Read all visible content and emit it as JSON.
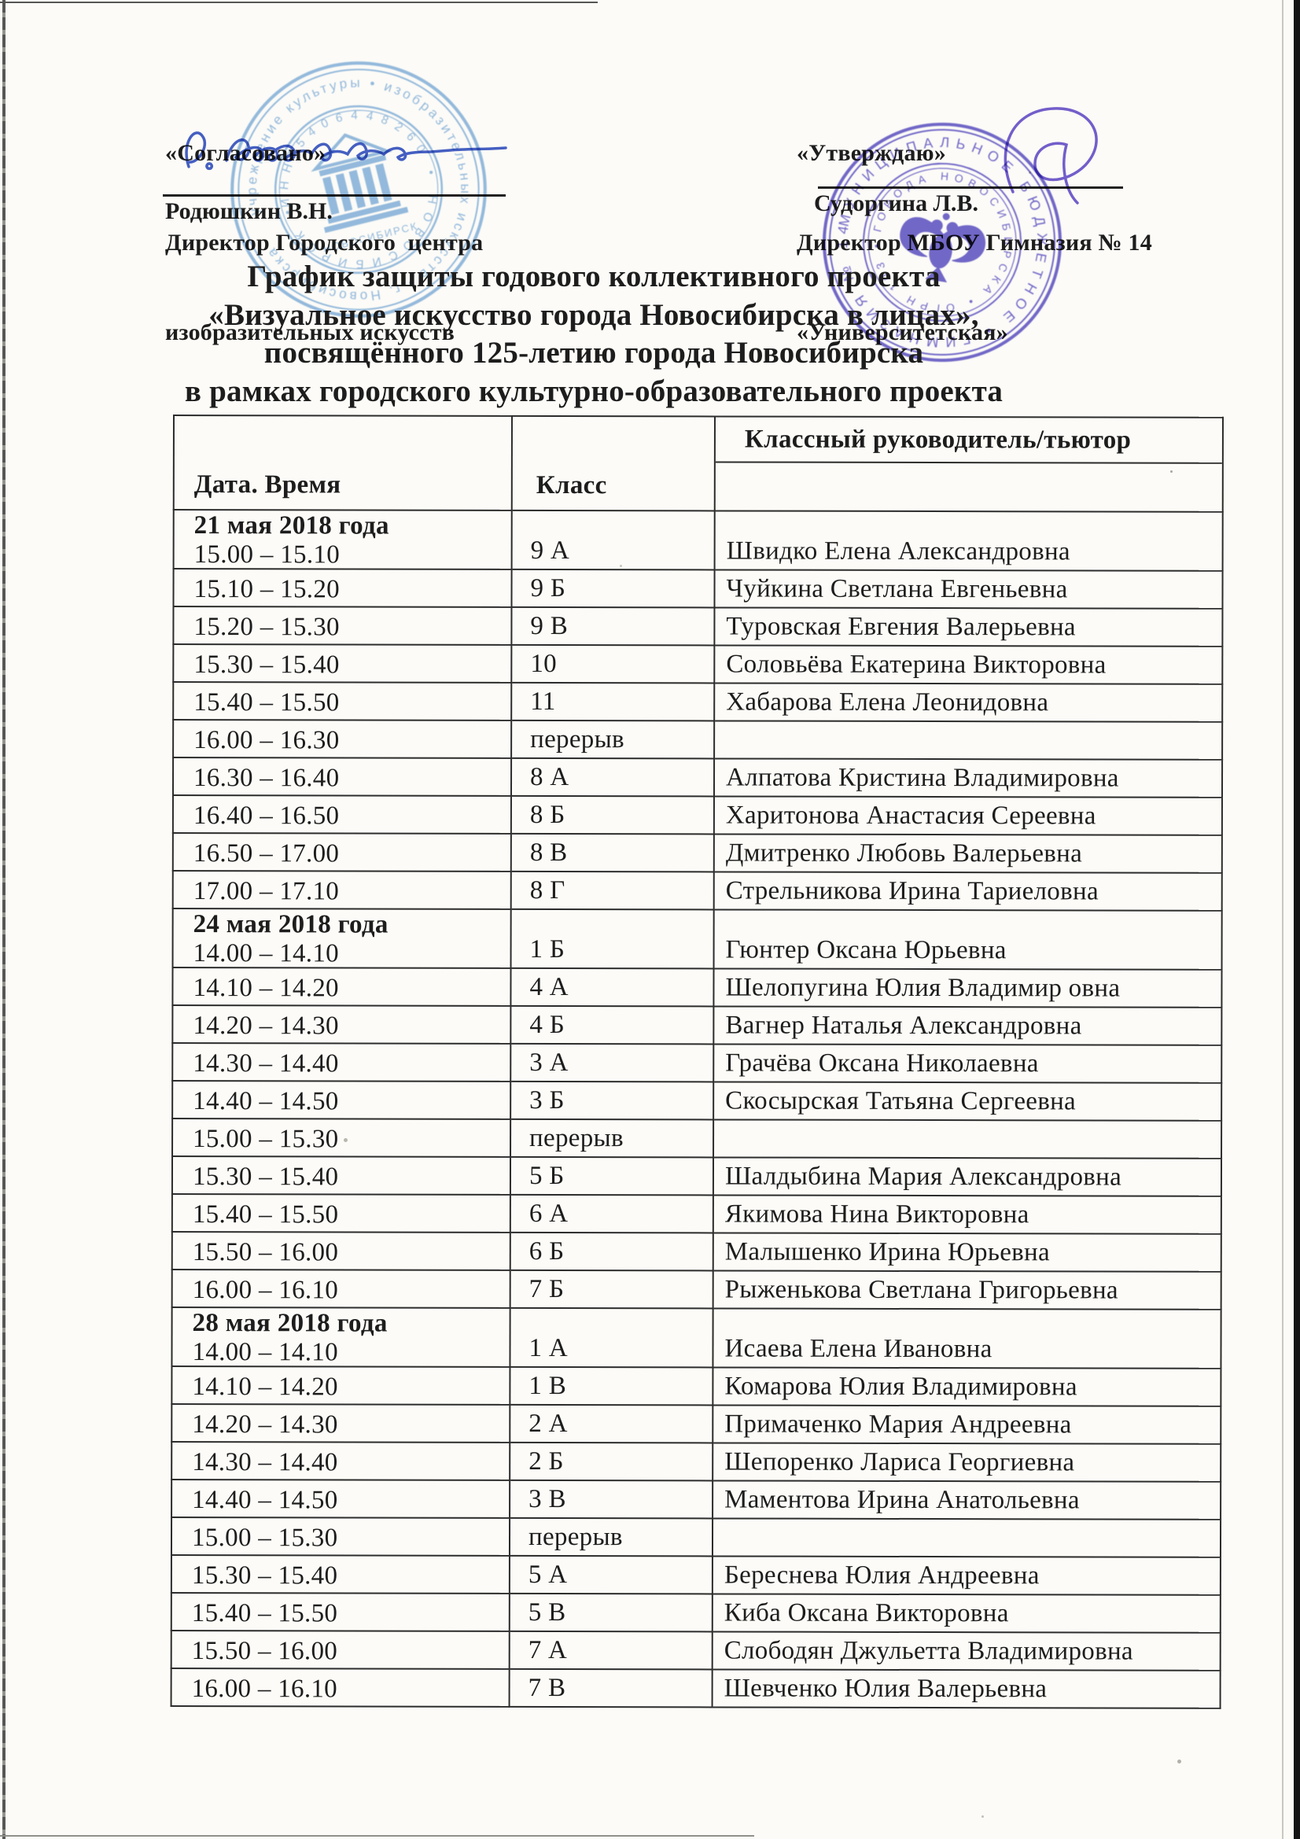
{
  "document": {
    "approval_left": {
      "status": "«Согласовано»",
      "role_line1": "Директор Городского  центра",
      "role_line2": "изобразительных искусств",
      "signatory": "Родюшкин В.Н."
    },
    "approval_right": {
      "status": "«Утверждаю»",
      "role_line1": "Директор МБОУ Гимназия № 14",
      "role_line2": "«Университетская»",
      "signatory": "Судоргина Л.В."
    },
    "title_lines": [
      "График защиты годового коллективного проекта",
      "«Визуальное искусство города Новосибирска в лицах»,",
      "посвящённого 125-летию города Новосибирска",
      "в рамках городского культурно-образовательного проекта"
    ],
    "stamps": {
      "left": {
        "color": "#4e8fd0",
        "ring1": "учреждение культуры • изобразительных искусств • г. Новосибирска",
        "ring2": "ИНН 5406448260 • НОВОСИБИРСК •",
        "center_label": "НОВОСИБИРСК"
      },
      "right": {
        "color": "#4a3ec0",
        "ring1": "МУНИЦИПАЛЬНОЕ БЮДЖЕТНОЕ • ГИМНАЗИЯ № 14 •",
        "ring2": "ГОРОДА НОВОСИБИРСКА • ОГРН 103 •"
      }
    }
  },
  "table": {
    "headers": [
      "Дата. Время",
      "Класс",
      "Классный руководитель/тьютор"
    ],
    "rows": [
      {
        "date": "21 мая 2018 года",
        "time": "15.00 – 15.10",
        "cls": "9 А",
        "teacher": "Швидко Елена Александровна"
      },
      {
        "time": "15.10 – 15.20",
        "cls": "9 Б",
        "teacher": "Чуйкина Светлана Евгеньевна"
      },
      {
        "time": "15.20 – 15.30",
        "cls": "9 В",
        "teacher": "Туровская Евгения Валерьевна"
      },
      {
        "time": "15.30 – 15.40",
        "cls": "10",
        "teacher": "Соловьёва Екатерина Викторовна"
      },
      {
        "time": "15.40 – 15.50",
        "cls": "11",
        "teacher": "Хабарова Елена Леонидовна"
      },
      {
        "time": "16.00 – 16.30",
        "cls": "перерыв",
        "teacher": ""
      },
      {
        "time": "16.30 – 16.40",
        "cls": "8 А",
        "teacher": "Алпатова Кристина Владимировна"
      },
      {
        "time": "16.40 – 16.50",
        "cls": "8 Б",
        "teacher": "Харитонова Анастасия Сереевна"
      },
      {
        "time": "16.50 – 17.00",
        "cls": "8 В",
        "teacher": "Дмитренко Любовь Валерьевна"
      },
      {
        "time": "17.00 – 17.10",
        "cls": "8 Г",
        "teacher": "Стрельникова Ирина Тариеловна"
      },
      {
        "date": "24 мая 2018 года",
        "time": "14.00 – 14.10",
        "cls": "1 Б",
        "teacher": "Гюнтер Оксана Юрьевна"
      },
      {
        "time": "14.10 – 14.20",
        "cls": "4 А",
        "teacher": "Шелопугина Юлия Владимир овна"
      },
      {
        "time": "14.20 – 14.30",
        "cls": "4 Б",
        "teacher": "Вагнер Наталья Александровна"
      },
      {
        "time": "14.30 – 14.40",
        "cls": "3 А",
        "teacher": "Грачёва Оксана Николаевна"
      },
      {
        "time": "14.40 – 14.50",
        "cls": "3 Б",
        "teacher": "Скосырская Татьяна Сергеевна"
      },
      {
        "time": "15.00 – 15.30",
        "cls": "перерыв",
        "teacher": ""
      },
      {
        "time": "15.30 – 15.40",
        "cls": "5 Б",
        "teacher": "Шалдыбина Мария Александровна"
      },
      {
        "time": "15.40 – 15.50",
        "cls": "6 А",
        "teacher": "Якимова Нина Викторовна"
      },
      {
        "time": "15.50 – 16.00",
        "cls": "6 Б",
        "teacher": "Малышенко Ирина Юрьевна"
      },
      {
        "time": "16.00 – 16.10",
        "cls": "7 Б",
        "teacher": "Рыженькова Светлана Григорьевна"
      },
      {
        "date": "28 мая 2018 года",
        "time": "14.00 – 14.10",
        "cls": "1 А",
        "teacher": "Исаева Елена Ивановна"
      },
      {
        "time": "14.10 – 14.20",
        "cls": "1 В",
        "teacher": "Комарова Юлия Владимировна"
      },
      {
        "time": "14.20 – 14.30",
        "cls": "2 А",
        "teacher": "Примаченко Мария Андреевна"
      },
      {
        "time": "14.30 – 14.40",
        "cls": "2 Б",
        "teacher": "Шепоренко Лариса Георгиевна"
      },
      {
        "time": "14.40 – 14.50",
        "cls": "3 В",
        "teacher": "Маментова Ирина Анатольевна"
      },
      {
        "time": "15.00 – 15.30",
        "cls": "перерыв",
        "teacher": ""
      },
      {
        "time": "15.30 – 15.40",
        "cls": "5 А",
        "teacher": "Береснева Юлия Андреевна"
      },
      {
        "time": "15.40 – 15.50",
        "cls": "5 В",
        "teacher": "Киба Оксана Викторовна"
      },
      {
        "time": "15.50 – 16.00",
        "cls": "7 А",
        "teacher": "Слободян Джульетта Владимировна"
      },
      {
        "time": "16.00 – 16.10",
        "cls": "7 В",
        "teacher": "Шевченко Юлия Валерьевна"
      }
    ]
  },
  "colors": {
    "ink": "#1d1d1d",
    "stamp_blue": "#4e8fd0",
    "stamp_violet": "#4a3ec0",
    "signature_blue": "#3652c4",
    "signature_violet": "#5b43c9"
  }
}
